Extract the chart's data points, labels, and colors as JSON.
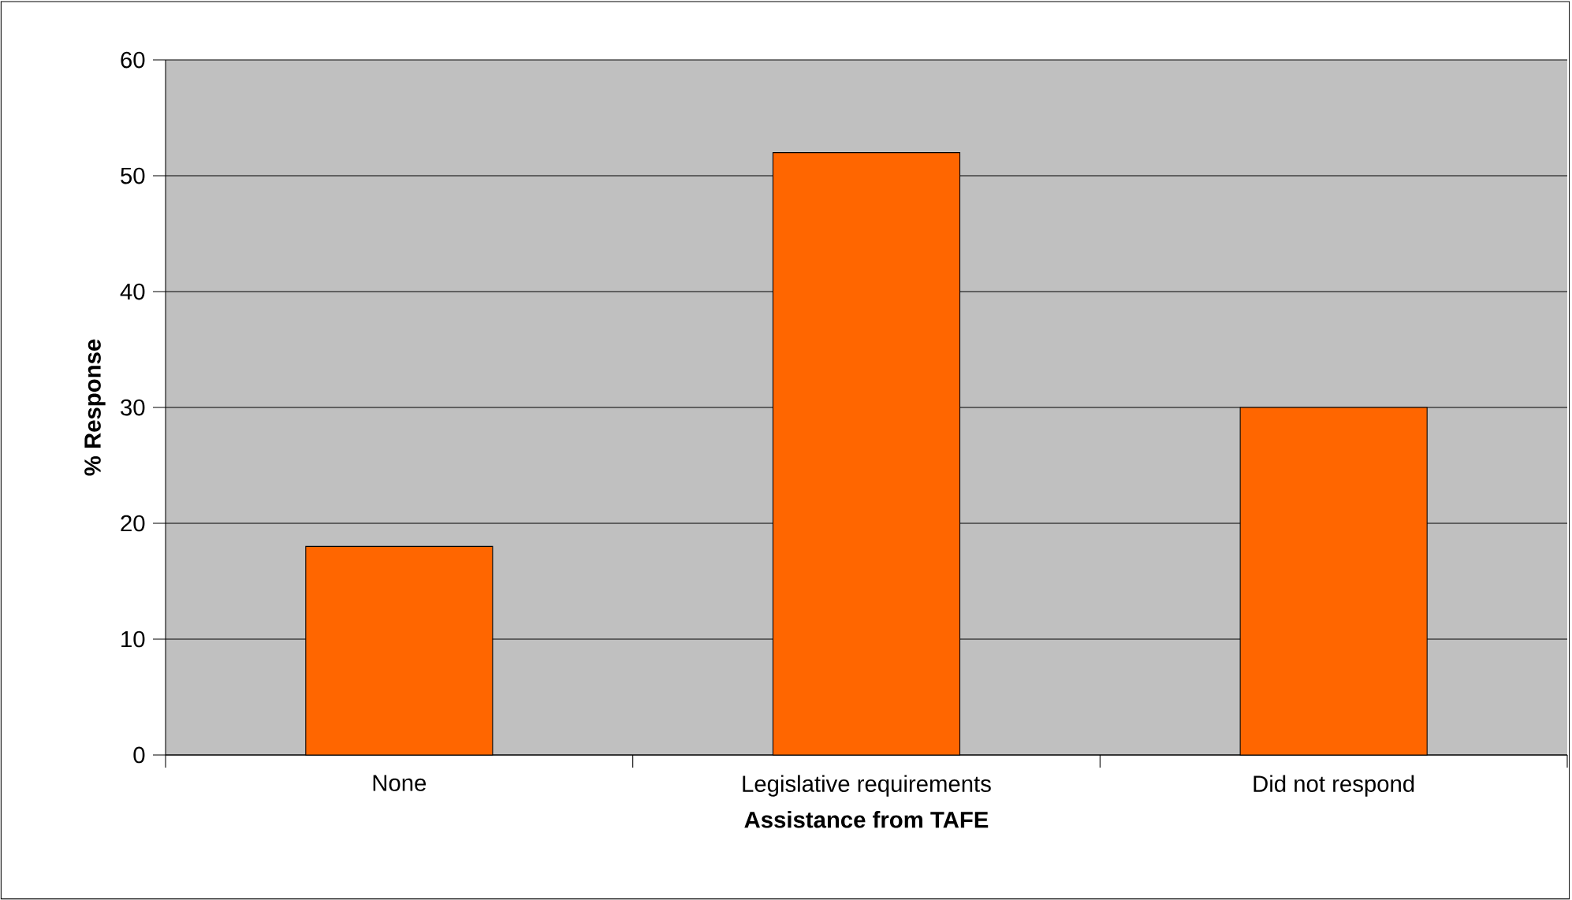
{
  "chart_data": {
    "type": "bar",
    "xlabel": "Assistance from TAFE",
    "ylabel": "% Response",
    "categories": [
      "None",
      "Legislative requirements",
      "Did not respond"
    ],
    "values": [
      18,
      52,
      30
    ],
    "color": "#ff6600",
    "ylim": [
      0,
      60
    ],
    "yticks": [
      0,
      10,
      20,
      30,
      40,
      50,
      60
    ],
    "grid": "y"
  }
}
